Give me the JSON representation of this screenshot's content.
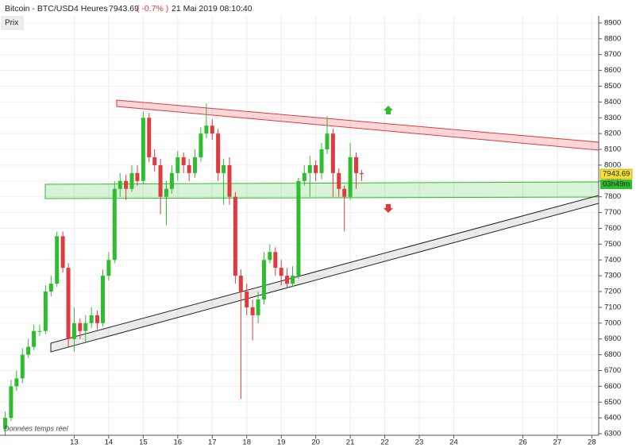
{
  "chart_data": {
    "type": "candlestick",
    "title": "Bitcoin - BTC/USD",
    "timeframe": "4 Heures",
    "last_price": 7943.69,
    "change": "( -0.7% )",
    "timestamp": "21 Mai 2019 08:10:40",
    "panel_label": "Prix",
    "countdown": "03h49m",
    "footnote": "Données temps réel",
    "up_color": "#2ebd2e",
    "down_color": "#e0393e",
    "grid": true,
    "xlim": [
      10.85,
      28.2
    ],
    "xticks": [
      13,
      14,
      15,
      16,
      17,
      18,
      19,
      20,
      21,
      22,
      23,
      24,
      26,
      27,
      28
    ],
    "ylim": [
      6290,
      8945
    ],
    "yticks": [
      6300,
      6400,
      6500,
      6600,
      6700,
      6800,
      6900,
      7000,
      7100,
      7200,
      7300,
      7400,
      7500,
      7600,
      7700,
      7800,
      7900,
      8000,
      8100,
      8200,
      8300,
      8400,
      8500,
      8600,
      8700,
      8800,
      8900
    ],
    "x": [
      11,
      11.17,
      11.33,
      11.5,
      11.67,
      11.83,
      12,
      12.17,
      12.33,
      12.5,
      12.67,
      12.83,
      13,
      13.17,
      13.33,
      13.5,
      13.67,
      13.83,
      14,
      14.17,
      14.33,
      14.5,
      14.67,
      14.83,
      15,
      15.17,
      15.33,
      15.5,
      15.67,
      15.83,
      16,
      16.17,
      16.33,
      16.5,
      16.67,
      16.83,
      17,
      17.17,
      17.33,
      17.5,
      17.67,
      17.83,
      18,
      18.17,
      18.33,
      18.5,
      18.67,
      18.83,
      19,
      19.17,
      19.33,
      19.5,
      19.67,
      19.83,
      20,
      20.17,
      20.33,
      20.5,
      20.67,
      20.83,
      21,
      21.17,
      21.33
    ],
    "open": [
      6330,
      6400,
      6600,
      6650,
      6800,
      6850,
      6950,
      6950,
      7200,
      7250,
      7550,
      7350,
      6900,
      7000,
      6950,
      7000,
      7050,
      7000,
      7300,
      7400,
      7850,
      7900,
      7850,
      7950,
      7900,
      8300,
      8050,
      8000,
      7800,
      7850,
      7950,
      8050,
      8000,
      7950,
      8050,
      8200,
      8250,
      8200,
      7950,
      8000,
      7800,
      7300,
      7200,
      7100,
      7050,
      7150,
      7400,
      7450,
      7350,
      7300,
      7250,
      7300,
      7900,
      7950,
      8000,
      7950,
      8100,
      8200,
      7950,
      7850,
      7800,
      8050,
      7950
    ],
    "high": [
      6440,
      6640,
      6700,
      6840,
      6900,
      6990,
      6990,
      7240,
      7300,
      7580,
      7580,
      7380,
      7100,
      7030,
      7050,
      7100,
      7080,
      7340,
      7450,
      7900,
      7950,
      7940,
      8000,
      8000,
      8340,
      8330,
      8100,
      8040,
      7900,
      8000,
      8090,
      8080,
      8040,
      8100,
      8240,
      8390,
      8290,
      8230,
      8040,
      8050,
      7830,
      7340,
      7250,
      7150,
      7200,
      7450,
      7500,
      7480,
      7400,
      7350,
      7360,
      7920,
      8000,
      8060,
      8030,
      8140,
      8310,
      8230,
      7980,
      7870,
      8140,
      8080,
      7970
    ],
    "low": [
      6290,
      6380,
      6570,
      6620,
      6780,
      6830,
      6920,
      6930,
      7170,
      7230,
      7320,
      6850,
      6820,
      6900,
      6880,
      6970,
      6960,
      6980,
      7270,
      7380,
      7800,
      7780,
      7830,
      7870,
      7880,
      8020,
      7960,
      7690,
      7620,
      7820,
      7900,
      7950,
      7900,
      7920,
      8020,
      8170,
      8160,
      7900,
      7750,
      7750,
      7250,
      6520,
      7050,
      6890,
      7000,
      7120,
      7380,
      7300,
      7240,
      7220,
      7230,
      7280,
      7870,
      7800,
      7900,
      7910,
      8070,
      7800,
      7800,
      7580,
      7780,
      7850,
      7900
    ],
    "close": [
      6400,
      6600,
      6650,
      6800,
      6850,
      6950,
      6950,
      7200,
      7250,
      7550,
      7350,
      6900,
      7000,
      6950,
      7000,
      7050,
      7000,
      7300,
      7400,
      7850,
      7900,
      7850,
      7950,
      7900,
      8300,
      8050,
      8000,
      7800,
      7850,
      7950,
      8050,
      8000,
      7950,
      8050,
      8200,
      8250,
      8200,
      7950,
      8000,
      7800,
      7300,
      7200,
      7100,
      7050,
      7150,
      7400,
      7450,
      7350,
      7300,
      7250,
      7300,
      7900,
      7950,
      8000,
      7950,
      8100,
      8200,
      7950,
      7850,
      7800,
      8050,
      7950,
      7943.69
    ]
  }
}
